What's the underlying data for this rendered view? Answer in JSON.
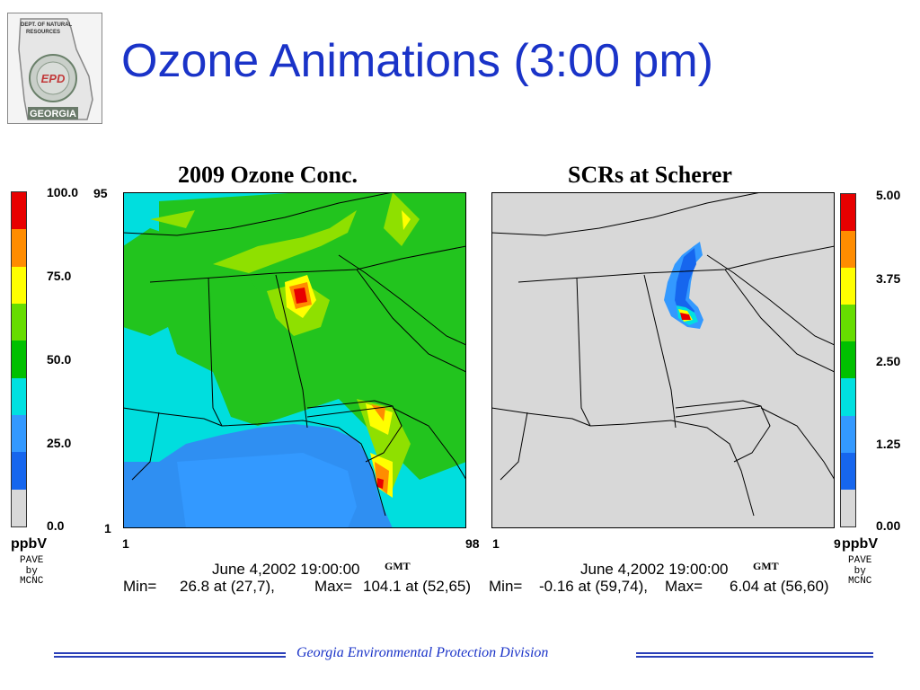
{
  "slide": {
    "title": "Ozone Animations (3:00 pm)",
    "footer": "Georgia Environmental Protection Division",
    "accent_color": "#1a33c8",
    "logo": {
      "icon": "georgia-dnr-seal-icon",
      "lines": [
        "DEPT. OF NATURAL",
        "RESOURCES",
        "GEORGIA"
      ],
      "seal_text": "EPD"
    }
  },
  "chart_data": [
    {
      "type": "heatmap",
      "title": "2009 Ozone Conc.",
      "units": "ppbV",
      "credit": [
        "PAVE",
        "by",
        "MCNC"
      ],
      "colorbar": {
        "ticks": [
          "100.0",
          "75.0",
          "50.0",
          "25.0",
          "0.0"
        ],
        "colors": [
          "#e80000",
          "#ff8c00",
          "#ffff00",
          "#66dd00",
          "#00c000",
          "#00e0e0",
          "#3399ff",
          "#1666ee",
          "#d8d8d8"
        ]
      },
      "x_ticks": [
        "1",
        "98"
      ],
      "y_ticks": [
        "95",
        "1"
      ],
      "timestamp": "June 4,2002 19:00:00",
      "timezone": "GMT",
      "min_label": "Min=",
      "min": "26.8 at (27,7),",
      "max_label": "Max=",
      "max": "104.1 at (52,65)"
    },
    {
      "type": "heatmap",
      "title": "SCRs at Scherer",
      "units": "ppbV",
      "credit": [
        "PAVE",
        "by",
        "MCNC"
      ],
      "colorbar": {
        "ticks": [
          "5.00",
          "3.75",
          "2.50",
          "1.25",
          "0.00"
        ],
        "colors": [
          "#e80000",
          "#ff8c00",
          "#ffff00",
          "#66dd00",
          "#00c000",
          "#00e0e0",
          "#3399ff",
          "#1666ee",
          "#d8d8d8"
        ]
      },
      "x_ticks": [
        "1",
        "9"
      ],
      "timestamp": "June 4,2002 19:00:00",
      "timezone": "GMT",
      "min_label": "Min=",
      "min": "-0.16 at (59,74),",
      "max_label": "Max=",
      "max": "6.04 at (56,60)"
    }
  ]
}
